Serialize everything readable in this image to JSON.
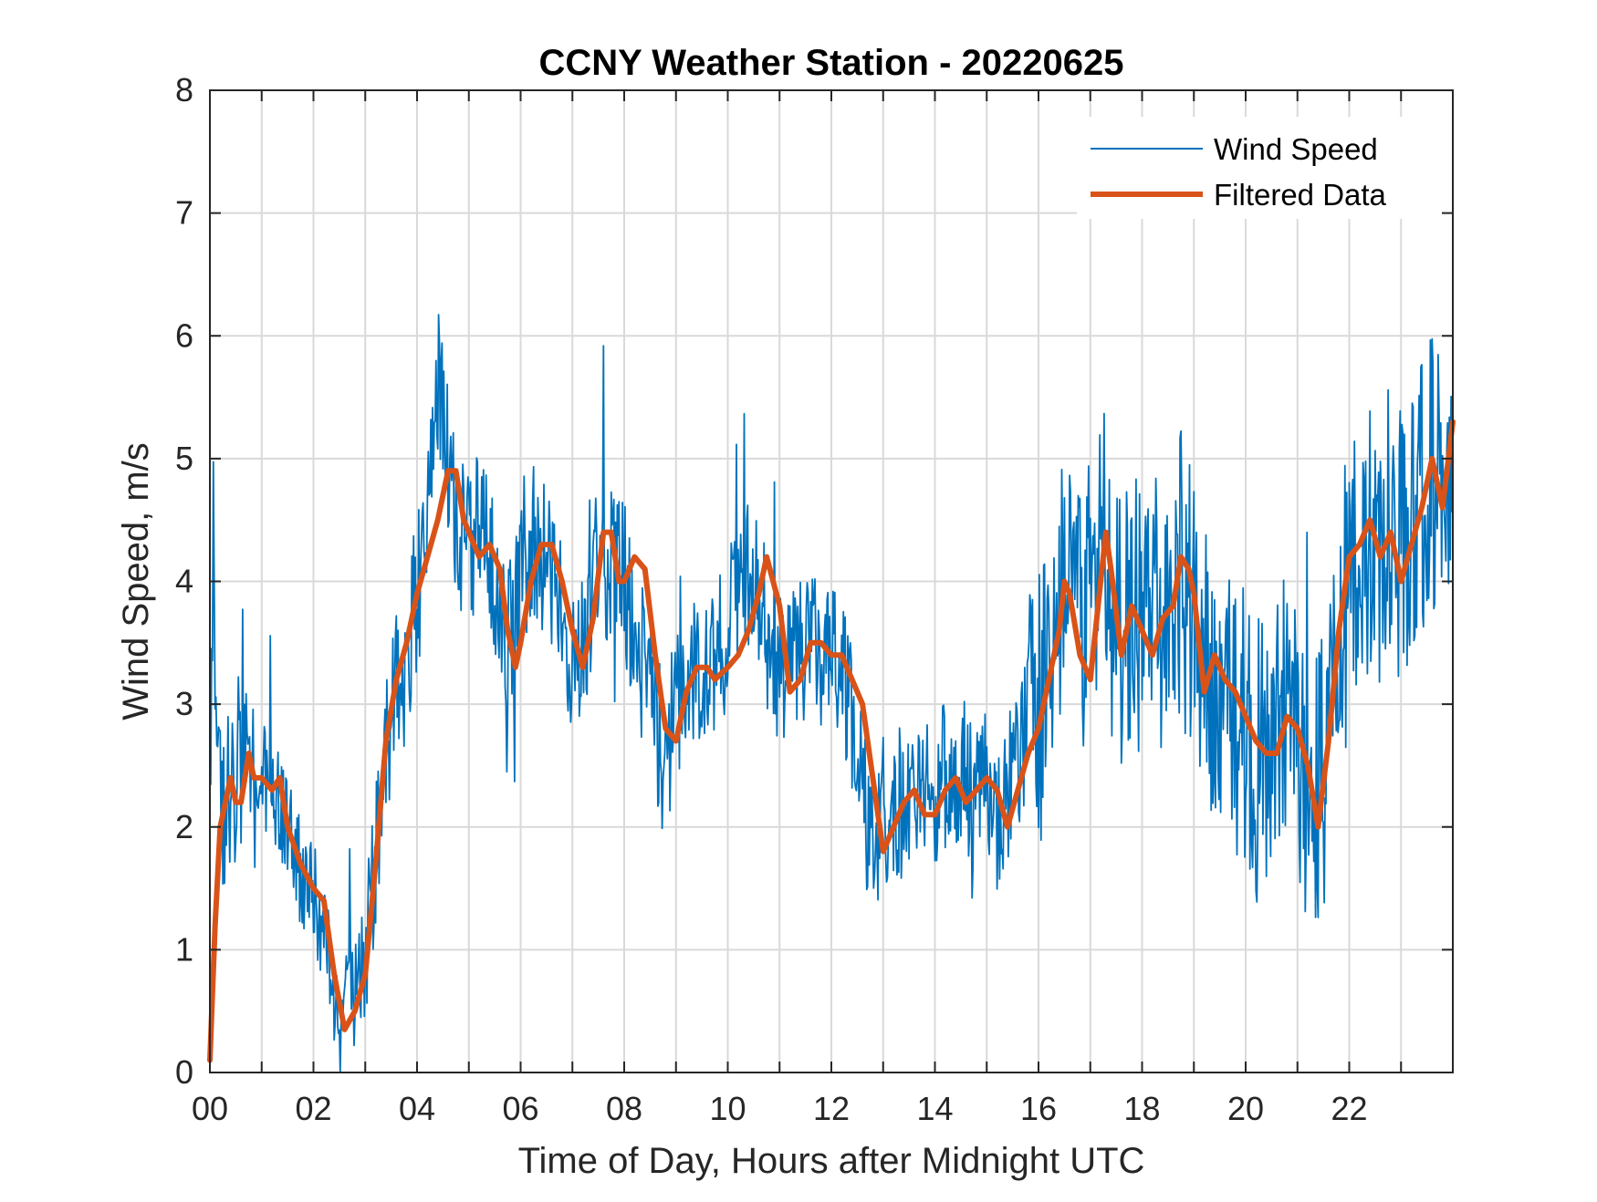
{
  "chart_data": {
    "type": "line",
    "title": "CCNY Weather Station - 20220625",
    "xlabel": "Time of Day, Hours after Midnight UTC",
    "ylabel": "Wind Speed, m/s",
    "xlim": [
      0,
      24
    ],
    "ylim": [
      0,
      8
    ],
    "x_ticks": [
      0,
      2,
      4,
      6,
      8,
      10,
      12,
      14,
      16,
      18,
      20,
      22
    ],
    "x_tick_labels": [
      "00",
      "02",
      "04",
      "06",
      "08",
      "10",
      "12",
      "14",
      "16",
      "18",
      "20",
      "22"
    ],
    "x_minor_grid_step": 1,
    "y_ticks": [
      0,
      1,
      2,
      3,
      4,
      5,
      6,
      7,
      8
    ],
    "y_tick_labels": [
      "0",
      "1",
      "2",
      "3",
      "4",
      "5",
      "6",
      "7",
      "8"
    ],
    "grid": true,
    "legend_position": "top-right",
    "series": [
      {
        "name": "Wind Speed",
        "color": "#0072BD",
        "style": "thin-noisy",
        "x": [
          0,
          0.1,
          0.25,
          0.5,
          0.75,
          1.0,
          1.25,
          1.5,
          1.75,
          2.0,
          2.25,
          2.5,
          2.75,
          3.0,
          3.25,
          3.5,
          3.75,
          4.0,
          4.25,
          4.4,
          4.6,
          4.75,
          5.0,
          5.25,
          5.5,
          5.75,
          6.0,
          6.25,
          6.5,
          6.75,
          7.0,
          7.25,
          7.5,
          7.75,
          8.0,
          8.25,
          8.5,
          8.75,
          9.0,
          9.25,
          9.5,
          9.75,
          10.0,
          10.25,
          10.5,
          10.75,
          11.0,
          11.25,
          11.5,
          11.75,
          12.0,
          12.25,
          12.5,
          12.75,
          13.0,
          13.25,
          13.5,
          13.75,
          14.0,
          14.25,
          14.5,
          14.75,
          15.0,
          15.25,
          15.5,
          15.75,
          16.0,
          16.25,
          16.5,
          16.75,
          17.0,
          17.25,
          17.5,
          17.75,
          18.0,
          18.25,
          18.5,
          18.75,
          19.0,
          19.25,
          19.5,
          19.75,
          20.0,
          20.25,
          20.5,
          20.75,
          21.0,
          21.25,
          21.5,
          21.75,
          22.0,
          22.25,
          22.5,
          22.75,
          23.0,
          23.25,
          23.5,
          23.75,
          24.0
        ],
        "values": [
          3.0,
          3.6,
          2.2,
          2.5,
          2.3,
          2.4,
          2.3,
          2.0,
          1.6,
          1.5,
          1.0,
          0.4,
          0.6,
          0.9,
          1.9,
          3.0,
          3.3,
          3.9,
          4.6,
          5.6,
          5.0,
          4.4,
          4.3,
          4.4,
          4.0,
          3.5,
          3.9,
          4.3,
          4.2,
          3.8,
          3.3,
          3.6,
          4.2,
          4.1,
          4.0,
          3.4,
          3.2,
          2.5,
          3.0,
          3.2,
          3.3,
          3.3,
          3.6,
          4.0,
          4.2,
          3.6,
          3.2,
          3.4,
          3.4,
          3.4,
          3.4,
          3.1,
          2.7,
          1.7,
          2.1,
          2.2,
          2.1,
          2.2,
          2.3,
          2.4,
          2.3,
          2.3,
          2.3,
          2.0,
          2.4,
          2.7,
          3.0,
          3.4,
          4.0,
          3.6,
          3.8,
          4.3,
          3.7,
          3.5,
          3.9,
          3.8,
          3.9,
          4.1,
          3.6,
          3.3,
          3.2,
          3.1,
          2.7,
          2.5,
          2.6,
          2.9,
          2.6,
          2.1,
          2.4,
          3.4,
          4.0,
          4.4,
          4.3,
          4.4,
          4.2,
          4.6,
          4.9,
          4.7,
          5.3
        ]
      },
      {
        "name": "Filtered Data",
        "color": "#D95319",
        "style": "thick",
        "x": [
          0,
          0.1,
          0.2,
          0.3,
          0.4,
          0.5,
          0.6,
          0.75,
          0.85,
          1.0,
          1.2,
          1.35,
          1.5,
          1.75,
          2.0,
          2.2,
          2.4,
          2.6,
          2.8,
          3.0,
          3.2,
          3.4,
          3.6,
          3.8,
          4.0,
          4.2,
          4.4,
          4.6,
          4.75,
          4.9,
          5.0,
          5.2,
          5.4,
          5.6,
          5.75,
          5.9,
          6.0,
          6.2,
          6.4,
          6.6,
          6.8,
          7.0,
          7.2,
          7.4,
          7.6,
          7.75,
          7.9,
          8.0,
          8.2,
          8.4,
          8.6,
          8.8,
          9.0,
          9.2,
          9.4,
          9.6,
          9.75,
          10.0,
          10.2,
          10.4,
          10.6,
          10.75,
          11.0,
          11.2,
          11.4,
          11.6,
          11.8,
          12.0,
          12.2,
          12.4,
          12.6,
          12.8,
          13.0,
          13.2,
          13.4,
          13.6,
          13.8,
          14.0,
          14.2,
          14.4,
          14.6,
          14.8,
          15.0,
          15.2,
          15.4,
          15.6,
          15.8,
          16.0,
          16.2,
          16.4,
          16.5,
          16.6,
          16.8,
          17.0,
          17.2,
          17.3,
          17.4,
          17.6,
          17.8,
          18.0,
          18.2,
          18.4,
          18.6,
          18.75,
          18.9,
          19.0,
          19.2,
          19.4,
          19.6,
          19.8,
          20.0,
          20.2,
          20.4,
          20.6,
          20.8,
          21.0,
          21.2,
          21.4,
          21.6,
          21.8,
          22.0,
          22.2,
          22.4,
          22.6,
          22.8,
          23.0,
          23.2,
          23.4,
          23.6,
          23.8,
          24.0
        ],
        "values": [
          0.1,
          1.2,
          2.0,
          2.2,
          2.4,
          2.2,
          2.2,
          2.6,
          2.4,
          2.4,
          2.3,
          2.4,
          2.0,
          1.7,
          1.5,
          1.4,
          0.8,
          0.35,
          0.5,
          0.8,
          1.7,
          2.7,
          3.2,
          3.5,
          3.9,
          4.2,
          4.5,
          4.9,
          4.9,
          4.5,
          4.4,
          4.2,
          4.3,
          4.1,
          3.6,
          3.3,
          3.5,
          4.0,
          4.3,
          4.3,
          4.0,
          3.6,
          3.3,
          3.7,
          4.4,
          4.4,
          4.0,
          4.0,
          4.2,
          4.1,
          3.4,
          2.8,
          2.7,
          3.1,
          3.3,
          3.3,
          3.2,
          3.3,
          3.4,
          3.6,
          3.9,
          4.2,
          3.8,
          3.1,
          3.2,
          3.5,
          3.5,
          3.4,
          3.4,
          3.2,
          3.0,
          2.4,
          1.8,
          2.0,
          2.2,
          2.3,
          2.1,
          2.1,
          2.3,
          2.4,
          2.2,
          2.3,
          2.4,
          2.3,
          2.0,
          2.3,
          2.6,
          2.8,
          3.2,
          3.6,
          4.0,
          3.9,
          3.4,
          3.2,
          4.0,
          4.4,
          4.1,
          3.4,
          3.8,
          3.6,
          3.4,
          3.7,
          3.8,
          4.2,
          4.1,
          3.9,
          3.1,
          3.4,
          3.2,
          3.1,
          2.9,
          2.7,
          2.6,
          2.6,
          2.9,
          2.8,
          2.5,
          2.0,
          2.7,
          3.6,
          4.2,
          4.3,
          4.5,
          4.2,
          4.4,
          4.0,
          4.3,
          4.6,
          5.0,
          4.6,
          5.3
        ]
      }
    ]
  }
}
